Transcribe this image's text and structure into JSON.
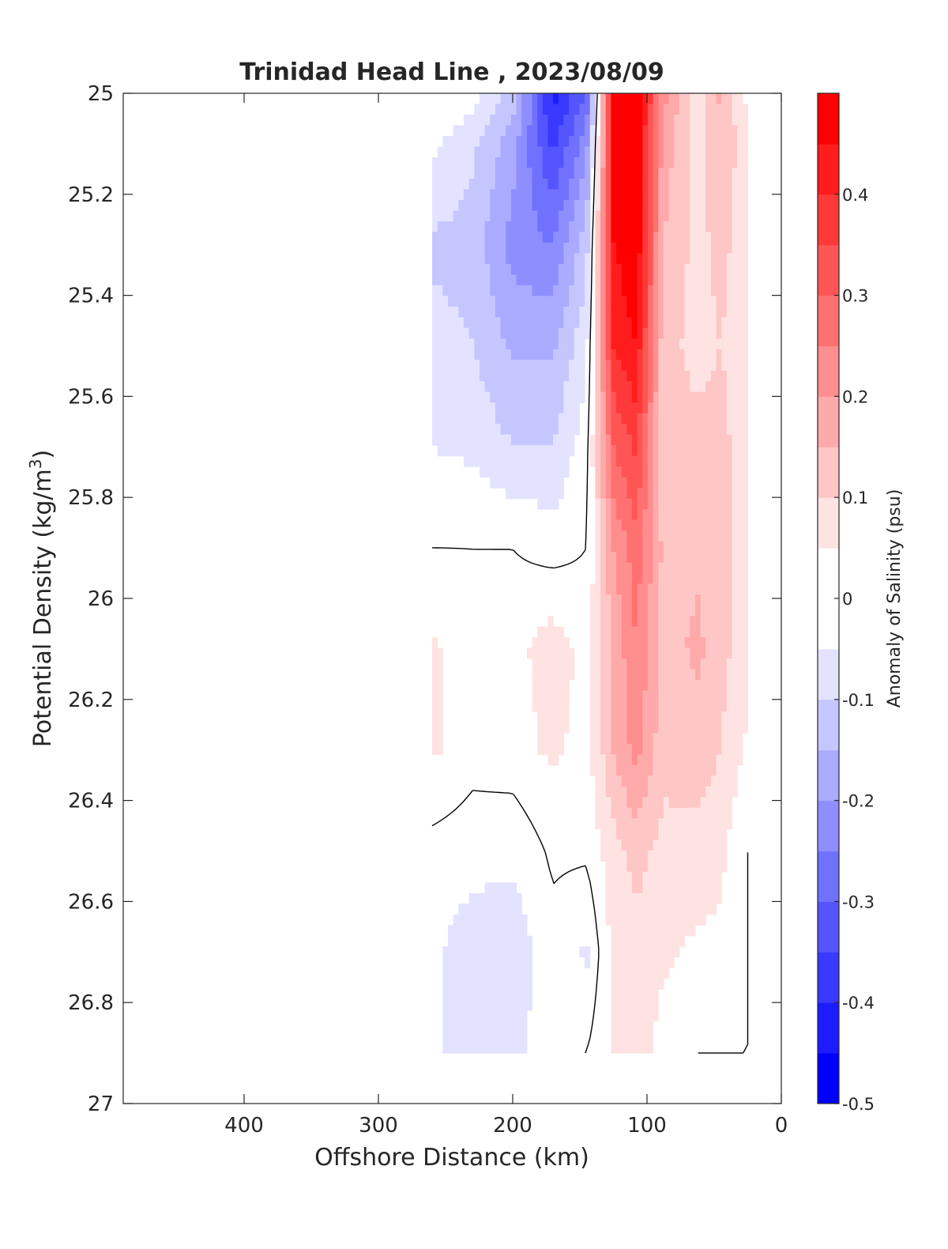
{
  "chart_data": {
    "type": "heatmap",
    "title": "Trinidad Head Line , 2023/08/09",
    "xlabel": "Offshore Distance (km)",
    "ylabel_main": "Potential Density (kg/m",
    "ylabel_sup": "3",
    "ylabel_close": ")",
    "colorbar_label": "Anomaly of Salinity (psu)",
    "xlim": [
      490,
      0
    ],
    "ylim": [
      25,
      27
    ],
    "x_reversed": true,
    "y_reversed": true,
    "x_ticks": [
      400,
      300,
      200,
      100,
      0
    ],
    "x_tick_labels": [
      "400",
      "300",
      "200",
      "100",
      "0"
    ],
    "y_ticks": [
      25,
      25.2,
      25.4,
      25.6,
      25.8,
      26,
      26.2,
      26.4,
      26.6,
      26.8,
      27
    ],
    "y_tick_labels": [
      "25",
      "25.2",
      "25.4",
      "25.6",
      "25.8",
      "26",
      "26.2",
      "26.4",
      "26.6",
      "26.8",
      "27"
    ],
    "colorbar": {
      "range": [
        -0.5,
        0.5
      ],
      "step": 0.05,
      "tick_values": [
        0.4,
        0.3,
        0.2,
        0.1,
        0,
        -0.1,
        -0.2,
        -0.3,
        -0.4,
        -0.5
      ],
      "tick_labels": [
        "0.4",
        "0.3",
        "0.2",
        "0.1",
        "0",
        "-0.1",
        "-0.2",
        "-0.3",
        "-0.4",
        "-0.5"
      ],
      "min_color": "#0000ff",
      "max_color": "#ff0000",
      "mid_color": "#ffffff"
    },
    "grid": false,
    "contour_line_color": "#000000",
    "columns": [
      {
        "x": 260,
        "y": [
          25.0,
          25.1,
          25.3,
          25.5,
          25.7,
          25.9,
          26.1,
          26.3,
          26.5,
          26.7,
          26.9
        ],
        "v": [
          0.0,
          -0.04,
          -0.11,
          -0.08,
          -0.05,
          0.0,
          0.06,
          0.06,
          -0.02,
          -0.04,
          -0.04
        ]
      },
      {
        "x": 230,
        "y": [
          25.0,
          25.1,
          25.3,
          25.5,
          25.7,
          25.9,
          26.1,
          26.3,
          26.5,
          26.7,
          26.9
        ],
        "v": [
          -0.02,
          -0.09,
          -0.12,
          -0.1,
          -0.06,
          0.0,
          0.02,
          0.02,
          -0.03,
          -0.08,
          -0.08
        ]
      },
      {
        "x": 200,
        "y": [
          25.0,
          25.1,
          25.3,
          25.5,
          25.7,
          25.9,
          26.1,
          26.3,
          26.5,
          26.7,
          26.9
        ],
        "v": [
          -0.12,
          -0.18,
          -0.22,
          -0.16,
          -0.1,
          0.0,
          0.03,
          0.03,
          -0.04,
          -0.08,
          -0.08
        ]
      },
      {
        "x": 170,
        "y": [
          25.0,
          25.1,
          25.3,
          25.5,
          25.7,
          25.9,
          26.1,
          26.3,
          26.5,
          26.7,
          26.9
        ],
        "v": [
          -0.42,
          -0.36,
          -0.25,
          -0.16,
          -0.1,
          -0.02,
          0.08,
          0.06,
          0.01,
          -0.02,
          0.0
        ]
      },
      {
        "x": 145,
        "y": [
          25.0,
          25.1,
          25.3,
          25.5,
          25.7,
          25.9,
          26.1,
          26.3,
          26.5,
          26.7,
          26.9
        ],
        "v": [
          -0.3,
          -0.22,
          -0.12,
          -0.06,
          -0.02,
          0.0,
          0.03,
          0.03,
          0.01,
          -0.06,
          0.0
        ]
      },
      {
        "x": 125,
        "y": [
          25.0,
          25.1,
          25.3,
          25.5,
          25.7,
          25.9,
          26.1,
          26.3,
          26.5,
          26.7,
          26.9
        ],
        "v": [
          0.45,
          0.45,
          0.45,
          0.4,
          0.3,
          0.2,
          0.16,
          0.15,
          0.08,
          0.07,
          0.06
        ]
      },
      {
        "x": 108,
        "y": [
          25.0,
          25.1,
          25.3,
          25.5,
          25.7,
          25.9,
          26.1,
          26.3,
          26.5,
          26.7,
          26.9
        ],
        "v": [
          0.5,
          0.5,
          0.5,
          0.45,
          0.36,
          0.28,
          0.25,
          0.22,
          0.12,
          0.08,
          0.07
        ]
      },
      {
        "x": 88,
        "y": [
          25.0,
          25.1,
          25.3,
          25.5,
          25.7,
          25.9,
          26.1,
          26.3,
          26.5,
          26.7,
          26.9
        ],
        "v": [
          0.22,
          0.18,
          0.15,
          0.12,
          0.12,
          0.14,
          0.13,
          0.12,
          0.08,
          0.06,
          0.03
        ]
      },
      {
        "x": 62,
        "y": [
          25.0,
          25.1,
          25.3,
          25.5,
          25.7,
          25.9,
          26.1,
          26.3,
          26.5,
          26.7,
          26.9
        ],
        "v": [
          0.06,
          0.08,
          0.08,
          0.08,
          0.12,
          0.14,
          0.16,
          0.13,
          0.08,
          0.04,
          0.0
        ]
      },
      {
        "x": 45,
        "y": [
          25.0,
          25.1,
          25.3,
          25.5,
          25.7,
          25.9,
          26.1,
          26.3,
          26.5,
          26.7,
          26.9
        ],
        "v": [
          0.16,
          0.15,
          0.12,
          0.1,
          0.12,
          0.12,
          0.12,
          0.1,
          0.06,
          0.04,
          0.0
        ]
      },
      {
        "x": 25,
        "y": [
          25.0,
          25.1,
          25.3,
          25.5,
          25.7,
          25.9,
          26.1,
          26.3,
          26.5,
          26.7,
          26.9
        ],
        "v": [
          0.03,
          0.06,
          0.06,
          0.06,
          0.06,
          0.06,
          0.06,
          0.04,
          0.0,
          0.0,
          0.0
        ]
      }
    ]
  }
}
